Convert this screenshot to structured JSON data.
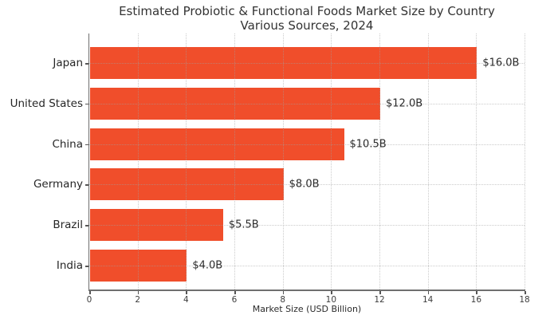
{
  "chart_data": {
    "type": "bar",
    "orientation": "horizontal",
    "title": "Estimated Probiotic & Functional Foods Market Size by Country",
    "subtitle": "Various Sources, 2024",
    "categories": [
      "Japan",
      "United States",
      "China",
      "Germany",
      "Brazil",
      "India"
    ],
    "values": [
      16.0,
      12.0,
      10.5,
      8.0,
      5.5,
      4.0
    ],
    "value_labels": [
      "$16.0B",
      "$12.0B",
      "$10.5B",
      "$8.0B",
      "$5.5B",
      "$4.0B"
    ],
    "xlabel": "Market Size (USD Billion)",
    "xlim": [
      0,
      18
    ],
    "xticks": [
      0,
      2,
      4,
      6,
      8,
      10,
      12,
      14,
      16,
      18
    ],
    "grid": true,
    "legend_position": "none",
    "bar_color": "#F04E2B",
    "title_color": "#333333",
    "label_color": "#262626",
    "tick_color": "#3d3d3d",
    "spine_color": "#6f6f6f"
  }
}
